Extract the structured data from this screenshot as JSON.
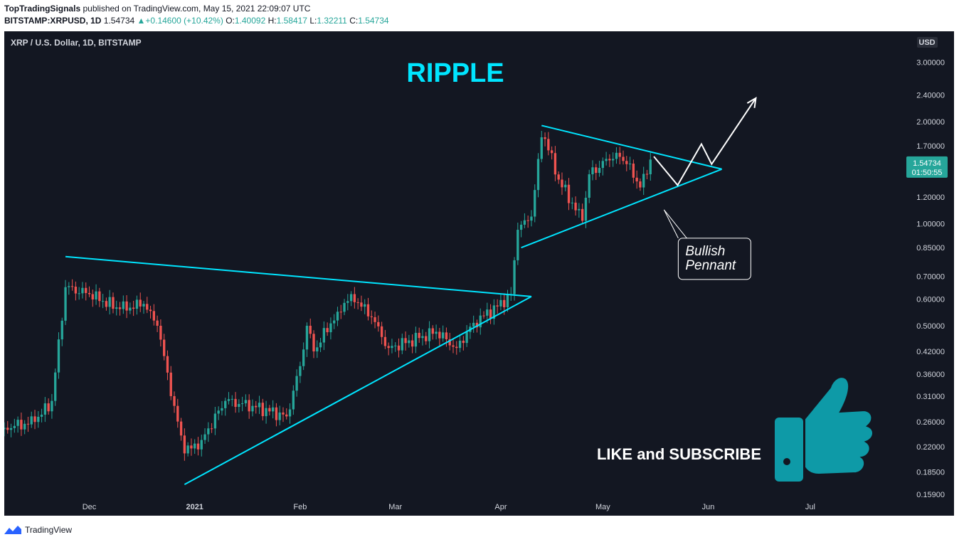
{
  "header": {
    "author": "TopTradingSignals",
    "published_text": "published on TradingView.com, May 15, 2021 22:09:07 UTC",
    "symbol": "BITSTAMP:XRPUSD, 1D",
    "last": "1.54734",
    "change": "+0.14600 (+10.42%)",
    "o_label": "O:",
    "o": "1.40092",
    "h_label": "H:",
    "h": "1.58417",
    "l_label": "L:",
    "l": "1.32211",
    "c_label": "C:",
    "c": "1.54734"
  },
  "footer": {
    "brand": "TradingView"
  },
  "chart_data": {
    "type": "candlestick",
    "title": "RIPPLE",
    "symbol_label": "XRP / U.S. Dollar, 1D, BITSTAMP",
    "currency": "USD",
    "y_scale": "log",
    "ylim": [
      0.15,
      3.7
    ],
    "y_ticks": [
      "3.00000",
      "2.40000",
      "2.00000",
      "1.70000",
      "1.20000",
      "1.00000",
      "0.85000",
      "0.70000",
      "0.60000",
      "0.50000",
      "0.42000",
      "0.36000",
      "0.31000",
      "0.26000",
      "0.22000",
      "0.18500",
      "0.15900"
    ],
    "x_ticks": [
      {
        "label": "Dec",
        "date": "2020-12-01"
      },
      {
        "label": "2021",
        "date": "2021-01-01"
      },
      {
        "label": "Feb",
        "date": "2021-02-01"
      },
      {
        "label": "Mar",
        "date": "2021-03-01"
      },
      {
        "label": "Apr",
        "date": "2021-04-01"
      },
      {
        "label": "May",
        "date": "2021-05-01"
      },
      {
        "label": "Jun",
        "date": "2021-06-01"
      },
      {
        "label": "Jul",
        "date": "2021-07-01"
      }
    ],
    "xlim": [
      "2020-11-06",
      "2021-07-28"
    ],
    "last_price": "1.54734",
    "countdown": "01:50:55",
    "close_anchors": [
      {
        "date": "2020-11-06",
        "close": 0.25
      },
      {
        "date": "2020-11-15",
        "close": 0.26
      },
      {
        "date": "2020-11-20",
        "close": 0.3
      },
      {
        "date": "2020-11-24",
        "close": 0.65
      },
      {
        "date": "2020-12-01",
        "close": 0.62
      },
      {
        "date": "2020-12-10",
        "close": 0.56
      },
      {
        "date": "2020-12-17",
        "close": 0.58
      },
      {
        "date": "2020-12-21",
        "close": 0.5
      },
      {
        "date": "2020-12-26",
        "close": 0.29
      },
      {
        "date": "2020-12-29",
        "close": 0.21
      },
      {
        "date": "2021-01-03",
        "close": 0.23
      },
      {
        "date": "2021-01-10",
        "close": 0.3
      },
      {
        "date": "2021-01-18",
        "close": 0.29
      },
      {
        "date": "2021-01-28",
        "close": 0.27
      },
      {
        "date": "2021-02-01",
        "close": 0.38
      },
      {
        "date": "2021-02-03",
        "close": 0.5
      },
      {
        "date": "2021-02-05",
        "close": 0.42
      },
      {
        "date": "2021-02-12",
        "close": 0.55
      },
      {
        "date": "2021-02-16",
        "close": 0.62
      },
      {
        "date": "2021-02-22",
        "close": 0.53
      },
      {
        "date": "2021-02-27",
        "close": 0.43
      },
      {
        "date": "2021-03-08",
        "close": 0.46
      },
      {
        "date": "2021-03-13",
        "close": 0.48
      },
      {
        "date": "2021-03-19",
        "close": 0.43
      },
      {
        "date": "2021-03-24",
        "close": 0.51
      },
      {
        "date": "2021-03-31",
        "close": 0.57
      },
      {
        "date": "2021-04-04",
        "close": 0.62
      },
      {
        "date": "2021-04-06",
        "close": 0.96
      },
      {
        "date": "2021-04-10",
        "close": 1.05
      },
      {
        "date": "2021-04-13",
        "close": 1.8
      },
      {
        "date": "2021-04-14",
        "close": 1.78
      },
      {
        "date": "2021-04-18",
        "close": 1.35
      },
      {
        "date": "2021-04-25",
        "close": 1.02
      },
      {
        "date": "2021-04-27",
        "close": 1.4
      },
      {
        "date": "2021-05-05",
        "close": 1.62
      },
      {
        "date": "2021-05-08",
        "close": 1.5
      },
      {
        "date": "2021-05-12",
        "close": 1.28
      },
      {
        "date": "2021-05-14",
        "close": 1.4
      },
      {
        "date": "2021-05-15",
        "close": 1.54734
      }
    ],
    "drawings": {
      "big_triangle": {
        "upper": [
          [
            "2020-11-24",
            0.8
          ],
          [
            "2021-04-10",
            0.61
          ]
        ],
        "lower": [
          [
            "2020-12-29",
            0.17
          ],
          [
            "2021-04-10",
            0.61
          ]
        ]
      },
      "pennant": {
        "upper": [
          [
            "2021-04-13",
            1.95
          ],
          [
            "2021-06-05",
            1.45
          ]
        ],
        "lower": [
          [
            "2021-04-07",
            0.85
          ],
          [
            "2021-06-05",
            1.45
          ]
        ]
      },
      "projection": [
        [
          "2021-05-16",
          1.58
        ],
        [
          "2021-05-23",
          1.3
        ],
        [
          "2021-05-30",
          1.72
        ],
        [
          "2021-06-02",
          1.5
        ],
        [
          "2021-06-15",
          2.35
        ]
      ],
      "callout": {
        "lines": [
          "Bullish",
          "Pennant"
        ],
        "pointer": [
          "2021-05-19",
          1.1
        ]
      }
    },
    "cta": "LIKE and SUBSCRIBE",
    "colors": {
      "up": "#26a69a",
      "down": "#ef5350",
      "bg": "#131722",
      "drawing": "#00e5ff",
      "title": "#00e5ff",
      "thumb": "#0e9aa7",
      "text": "#d1d4dc",
      "last_badge": "#26a69a"
    }
  }
}
